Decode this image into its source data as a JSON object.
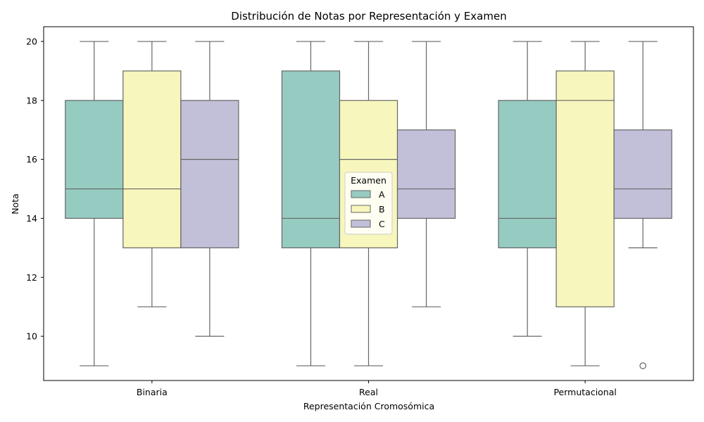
{
  "chart_data": {
    "type": "boxplot",
    "title": "Distribución de Notas por Representación y Examen",
    "xlabel": "Representación Cromosómica",
    "ylabel": "Nota",
    "ylim": [
      8.5,
      20.5
    ],
    "yticks": [
      10,
      12,
      14,
      16,
      18,
      20
    ],
    "grid": false,
    "categories": [
      "Binaria",
      "Real",
      "Permutacional"
    ],
    "legend": {
      "title": "Examen",
      "placement": "center"
    },
    "series": [
      {
        "name": "A",
        "color": "#96cbc1",
        "boxes": [
          {
            "whisker_low": 9,
            "q1": 14,
            "median": 15,
            "q3": 18,
            "whisker_high": 20,
            "outliers": []
          },
          {
            "whisker_low": 9,
            "q1": 13,
            "median": 14,
            "q3": 19,
            "whisker_high": 20,
            "outliers": []
          },
          {
            "whisker_low": 10,
            "q1": 13,
            "median": 14,
            "q3": 18,
            "whisker_high": 20,
            "outliers": []
          }
        ]
      },
      {
        "name": "B",
        "color": "#f7f7bd",
        "boxes": [
          {
            "whisker_low": 11,
            "q1": 13,
            "median": 15,
            "q3": 19,
            "whisker_high": 20,
            "outliers": []
          },
          {
            "whisker_low": 9,
            "q1": 13,
            "median": 16,
            "q3": 18,
            "whisker_high": 20,
            "outliers": []
          },
          {
            "whisker_low": 9,
            "q1": 11,
            "median": 18,
            "q3": 19,
            "whisker_high": 20,
            "outliers": []
          }
        ]
      },
      {
        "name": "C",
        "color": "#c2bfd8",
        "boxes": [
          {
            "whisker_low": 10,
            "q1": 13,
            "median": 16,
            "q3": 18,
            "whisker_high": 20,
            "outliers": []
          },
          {
            "whisker_low": 11,
            "q1": 14,
            "median": 15,
            "q3": 17,
            "whisker_high": 20,
            "outliers": []
          },
          {
            "whisker_low": 13,
            "q1": 14,
            "median": 15,
            "q3": 17,
            "whisker_high": 20,
            "outliers": [
              9
            ]
          }
        ]
      }
    ]
  }
}
